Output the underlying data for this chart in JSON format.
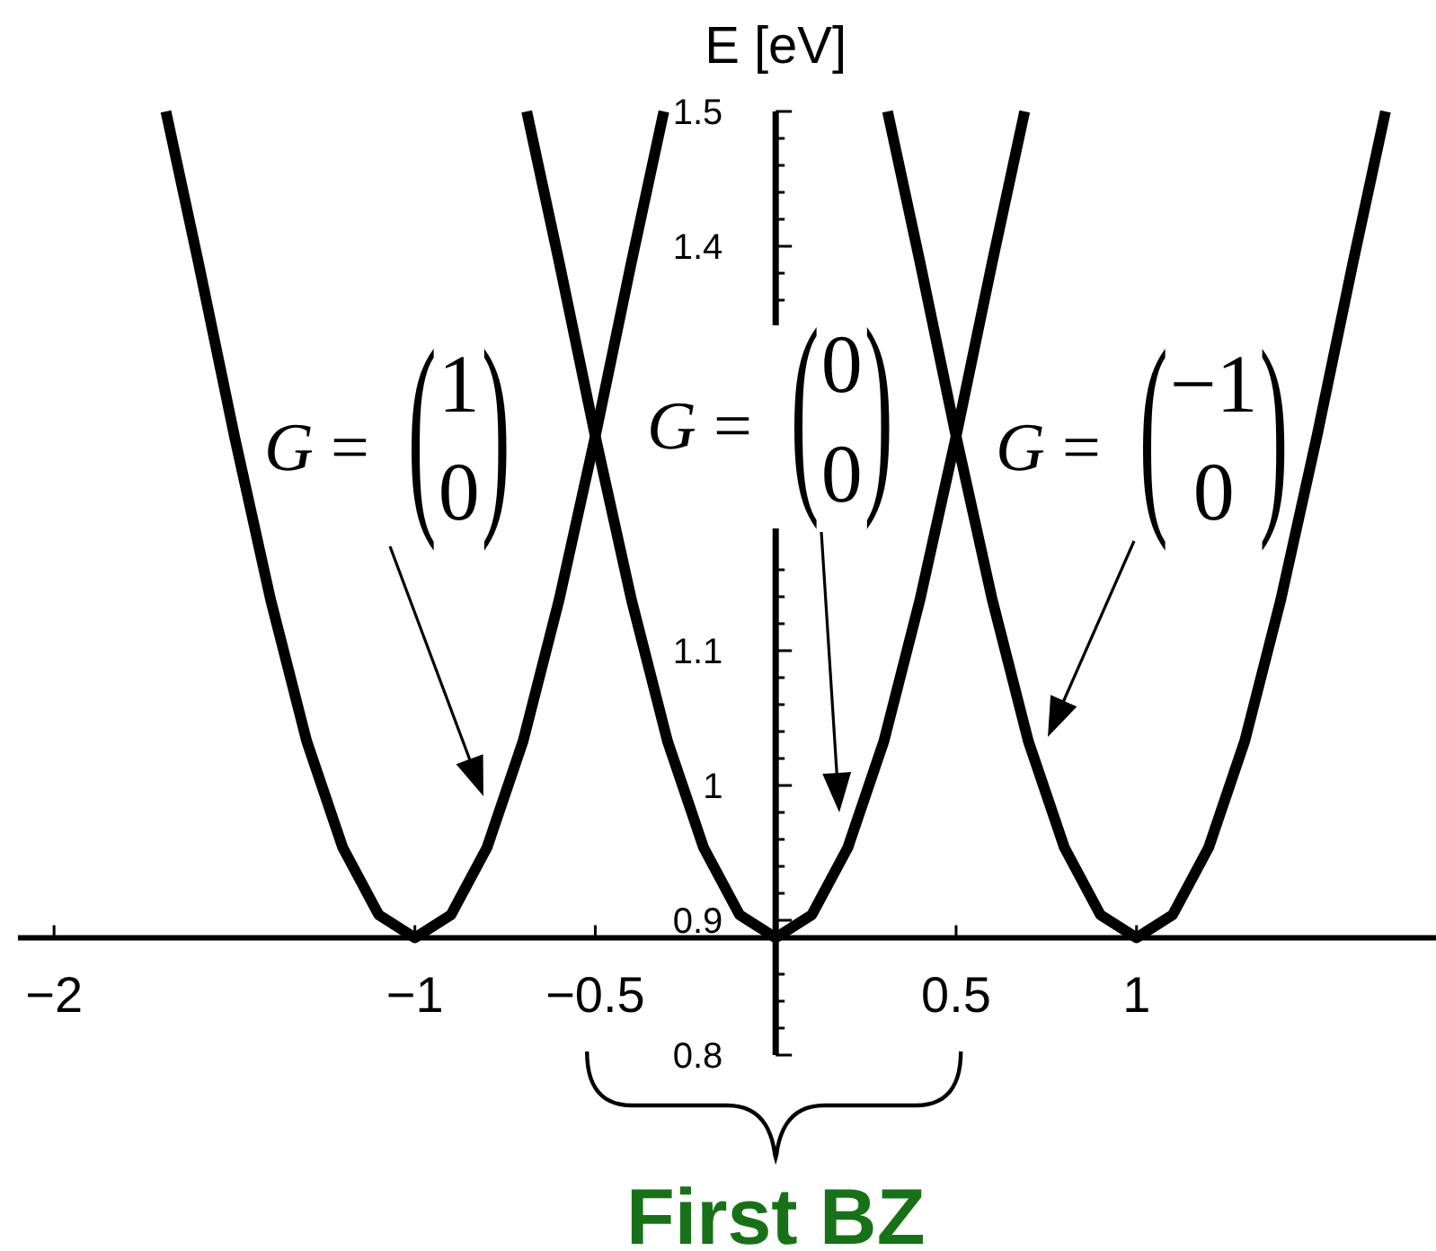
{
  "chart_data": {
    "type": "line",
    "ylabel": "E [eV]",
    "xlim": [
      -2.1,
      1.83
    ],
    "ylim": [
      0.8,
      1.5
    ],
    "xticks": [
      {
        "value": -2,
        "label": "−2"
      },
      {
        "value": -1,
        "label": "−1"
      },
      {
        "value": -0.5,
        "label": "−0.5"
      },
      0.5,
      1
    ],
    "yticks": [
      0.8,
      {
        "value": 0.82,
        "label": null
      },
      {
        "value": 0.84,
        "label": null
      },
      {
        "value": 0.86,
        "label": null
      },
      0.9,
      {
        "value": 0.92,
        "label": null
      },
      {
        "value": 0.94,
        "label": null
      },
      {
        "value": 0.96,
        "label": null
      },
      {
        "value": 0.98,
        "label": null
      },
      1,
      {
        "value": 1.02,
        "label": null
      },
      {
        "value": 1.04,
        "label": null
      },
      {
        "value": 1.06,
        "label": null
      },
      {
        "value": 1.08,
        "label": null
      },
      1.1,
      {
        "value": 1.12,
        "label": null
      },
      {
        "value": 1.14,
        "label": null
      },
      {
        "value": 1.16,
        "label": null
      },
      {
        "value": 1.36,
        "label": null
      },
      {
        "value": 1.38,
        "label": null
      },
      1.4,
      {
        "value": 1.42,
        "label": null
      },
      {
        "value": 1.44,
        "label": null
      },
      {
        "value": 1.46,
        "label": null
      },
      {
        "value": 1.48,
        "label": null
      },
      1.5
    ],
    "series": [
      {
        "name": "G = (1 0)",
        "color": "#000000",
        "x": [
          -1.69,
          -1.6,
          -1.5,
          -1.4,
          -1.3,
          -1.2,
          -1.1,
          -1,
          -0.9,
          -0.8,
          -0.7,
          -0.6,
          -0.5,
          -0.4,
          -0.31
        ],
        "values": [
          1.5,
          1.388,
          1.259,
          1.138,
          1.033,
          0.954,
          0.904,
          0.887,
          0.904,
          0.954,
          1.033,
          1.138,
          1.259,
          1.388,
          1.5
        ]
      },
      {
        "name": "G = (0 0)",
        "color": "#000000",
        "x": [
          -0.69,
          -0.6,
          -0.5,
          -0.4,
          -0.3,
          -0.2,
          -0.1,
          0,
          0.1,
          0.2,
          0.3,
          0.4,
          0.5,
          0.6,
          0.69
        ],
        "values": [
          1.5,
          1.388,
          1.259,
          1.138,
          1.033,
          0.954,
          0.904,
          0.887,
          0.904,
          0.954,
          1.033,
          1.138,
          1.259,
          1.388,
          1.5
        ]
      },
      {
        "name": "G = (−1 0)",
        "color": "#000000",
        "x": [
          0.31,
          0.4,
          0.5,
          0.6,
          0.7,
          0.8,
          0.9,
          1,
          1.1,
          1.2,
          1.3,
          1.4,
          1.5,
          1.6,
          1.69
        ],
        "values": [
          1.5,
          1.388,
          1.259,
          1.138,
          1.033,
          0.954,
          0.904,
          0.887,
          0.904,
          0.954,
          1.033,
          1.138,
          1.259,
          1.388,
          1.5
        ]
      }
    ],
    "annotations": [
      "First BZ"
    ]
  }
}
